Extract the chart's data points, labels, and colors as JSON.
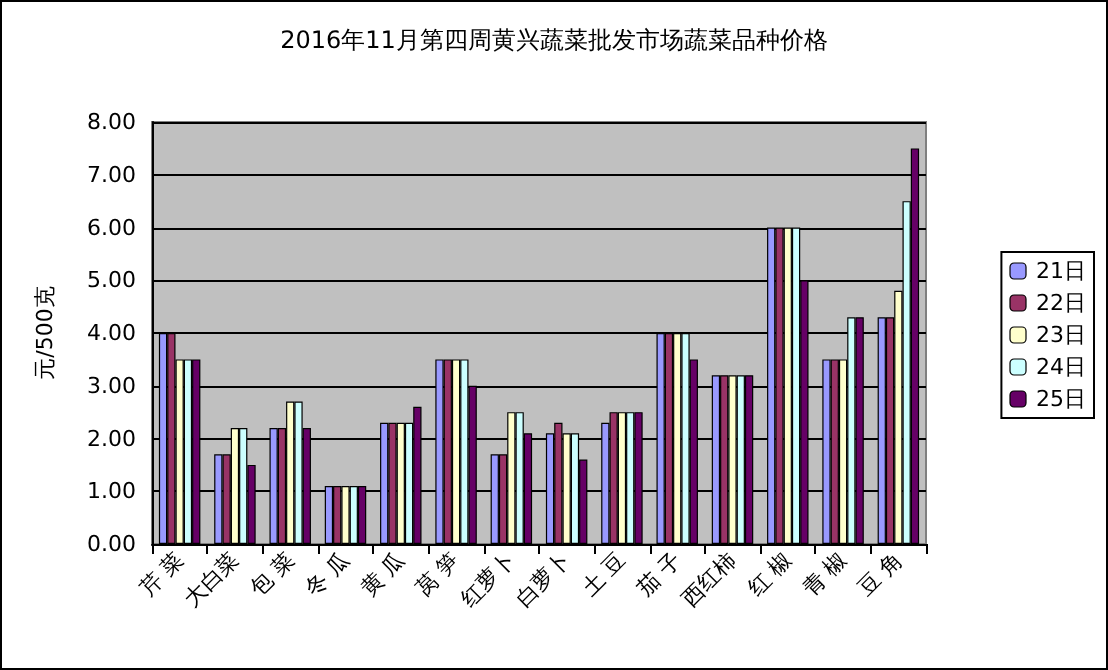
{
  "chart_data": {
    "type": "bar",
    "title": "2016年11月第四周黄兴蔬菜批发市场蔬菜品种价格",
    "ylabel": "元/500克",
    "categories": [
      "芹 菜",
      "大白菜",
      "包 菜",
      "冬 瓜",
      "黄 瓜",
      "莴 笋",
      "红萝卜",
      "白萝卜",
      "土 豆",
      "茄 子",
      "西红柿",
      "红 椒",
      "青 椒",
      "豆 角"
    ],
    "series": [
      {
        "name": "21日",
        "color": "#9999ff",
        "values": [
          4,
          1.7,
          2.2,
          1.1,
          2.3,
          3.5,
          1.7,
          2.1,
          2.3,
          4,
          3.2,
          6,
          3.5,
          4.3
        ]
      },
      {
        "name": "22日",
        "color": "#993366",
        "values": [
          4,
          1.7,
          2.2,
          1.1,
          2.3,
          3.5,
          1.7,
          2.3,
          2.5,
          4,
          3.2,
          6,
          3.5,
          4.3
        ]
      },
      {
        "name": "23日",
        "color": "#ffffcc",
        "values": [
          3.5,
          2.2,
          2.7,
          1.1,
          2.3,
          3.5,
          2.5,
          2.1,
          2.5,
          4,
          3.2,
          6,
          3.5,
          4.8
        ]
      },
      {
        "name": "24日",
        "color": "#ccffff",
        "values": [
          3.5,
          2.2,
          2.7,
          1.1,
          2.3,
          3.5,
          2.5,
          2.1,
          2.5,
          4,
          3.2,
          6,
          4.3,
          6.5
        ]
      },
      {
        "name": "25日",
        "color": "#660066",
        "values": [
          3.5,
          1.5,
          2.2,
          1.1,
          2.6,
          3,
          2.1,
          1.6,
          2.5,
          3.5,
          3.2,
          5,
          4.3,
          7.5
        ]
      }
    ],
    "ylim": [
      0,
      8
    ],
    "yticks": [
      {
        "value": 0,
        "label": "0.00"
      },
      {
        "value": 1,
        "label": "1.00"
      },
      {
        "value": 2,
        "label": "2.00"
      },
      {
        "value": 3,
        "label": "3.00"
      },
      {
        "value": 4,
        "label": "4.00"
      },
      {
        "value": 5,
        "label": "5.00"
      },
      {
        "value": 6,
        "label": "6.00"
      },
      {
        "value": 7,
        "label": "7.00"
      },
      {
        "value": 8,
        "label": "8.00"
      }
    ],
    "grid": "y",
    "legend": "right"
  }
}
